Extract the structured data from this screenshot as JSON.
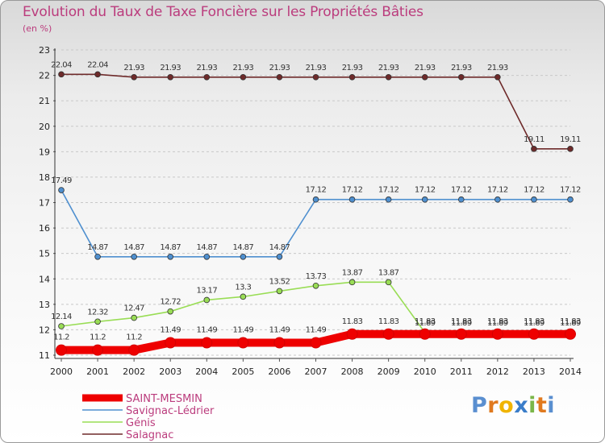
{
  "chart_data": {
    "type": "line",
    "title": "Evolution du Taux de Taxe Foncière sur les Propriétés Bâties",
    "subtitle": "(en %)",
    "xlabel": "",
    "ylabel": "(en %)",
    "ylim": [
      11,
      23
    ],
    "y_ticks": [
      "11",
      "12",
      "13",
      "14",
      "15",
      "16",
      "17",
      "18",
      "19",
      "20",
      "21",
      "22",
      "23"
    ],
    "x": [
      "2000",
      "2001",
      "2002",
      "2003",
      "2004",
      "2005",
      "2006",
      "2007",
      "2008",
      "2009",
      "2010",
      "2011",
      "2012",
      "2013",
      "2014"
    ],
    "grid": "horizontal dashed",
    "legend_position": "bottom-left",
    "series": [
      {
        "name": "SAINT-MESMIN",
        "color": "#ee0000",
        "values": [
          11.2,
          11.2,
          11.2,
          11.49,
          11.49,
          11.49,
          11.49,
          11.49,
          11.83,
          11.83,
          11.83,
          11.83,
          11.83,
          11.83,
          11.83
        ],
        "labels": [
          "11.2",
          "11.2",
          "11.2",
          "11.49",
          "11.49",
          "11.49",
          "11.49",
          "11.49",
          "11.83",
          "11.83",
          "11.83",
          "11.83",
          "11.83",
          "11.83",
          "11.83"
        ]
      },
      {
        "name": "Savignac-Lédrier",
        "color": "#4e8fcf",
        "values": [
          17.49,
          14.87,
          14.87,
          14.87,
          14.87,
          14.87,
          14.87,
          17.12,
          17.12,
          17.12,
          17.12,
          17.12,
          17.12,
          17.12,
          17.12
        ],
        "labels": [
          "17.49",
          "14.87",
          "14.87",
          "14.87",
          "14.87",
          "14.87",
          "14.87",
          "17.12",
          "17.12",
          "17.12",
          "17.12",
          "17.12",
          "17.12",
          "17.12",
          "17.12"
        ]
      },
      {
        "name": "Génis",
        "color": "#99dd55",
        "values": [
          12.14,
          12.32,
          12.47,
          12.72,
          13.17,
          13.3,
          13.52,
          13.73,
          13.87,
          13.87,
          11.89,
          11.89,
          11.89,
          11.89,
          11.89
        ],
        "labels": [
          "12.14",
          "12.32",
          "12.47",
          "12.72",
          "13.17",
          "13.3",
          "13.52",
          "13.73",
          "13.87",
          "13.87",
          "11.89",
          "11.89",
          "11.89",
          "11.89",
          "11.89"
        ]
      },
      {
        "name": "Salagnac",
        "color": "#6e2a2a",
        "values": [
          22.04,
          22.04,
          21.93,
          21.93,
          21.93,
          21.93,
          21.93,
          21.93,
          21.93,
          21.93,
          21.93,
          21.93,
          21.93,
          19.11,
          19.11
        ],
        "labels": [
          "22.04",
          "22.04",
          "21.93",
          "21.93",
          "21.93",
          "21.93",
          "21.93",
          "21.93",
          "21.93",
          "21.93",
          "21.93",
          "21.93",
          "21.93",
          "19.11",
          "19.11"
        ]
      }
    ]
  },
  "logo": {
    "letters": [
      "P",
      "r",
      "o",
      "x",
      "i",
      "t",
      "i"
    ],
    "colors": [
      "#5a8fd0",
      "#e07a1f",
      "#f0b400",
      "#3a7dc9",
      "#7ab648",
      "#e07a1f",
      "#5a8fd0"
    ]
  }
}
